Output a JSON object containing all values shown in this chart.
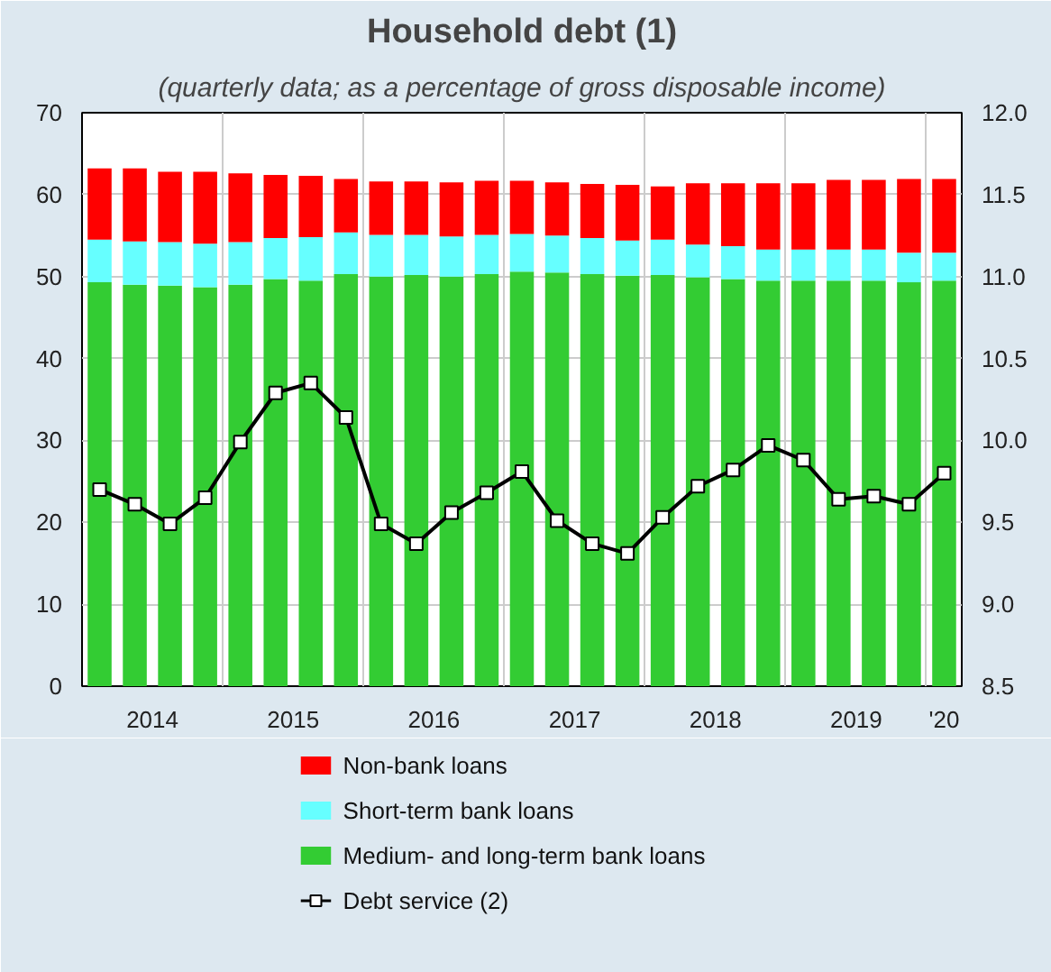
{
  "chart_data": {
    "type": "bar",
    "stacked": true,
    "title": "Household debt (1)",
    "subtitle": "(quarterly data; as a percentage of gross disposable income)",
    "x": [
      2014,
      2014.25,
      2014.5,
      2014.75,
      2015,
      2015.25,
      2015.5,
      2015.75,
      2016,
      2016.25,
      2016.5,
      2016.75,
      2017,
      2017.25,
      2017.5,
      2017.75,
      2018,
      2018.25,
      2018.5,
      2018.75,
      2019,
      2019.25,
      2019.5,
      2019.75,
      2020
    ],
    "xlim": [
      2013.875,
      2020.125
    ],
    "xticks": [
      {
        "value": 2014.375,
        "label": "2014"
      },
      {
        "value": 2015.375,
        "label": "2015"
      },
      {
        "value": 2016.375,
        "label": "2016"
      },
      {
        "value": 2017.375,
        "label": "2017"
      },
      {
        "value": 2018.375,
        "label": "2018"
      },
      {
        "value": 2019.375,
        "label": "2019"
      },
      {
        "value": 2020,
        "label": "'20"
      },
      {
        "value": 2014.875,
        "label": null
      },
      {
        "value": 2015.875,
        "label": null
      },
      {
        "value": 2016.875,
        "label": null
      },
      {
        "value": 2017.875,
        "label": null
      },
      {
        "value": 2018.875,
        "label": null
      },
      {
        "value": 2019.875,
        "label": null
      }
    ],
    "ylim": [
      0,
      70
    ],
    "yticks": [
      0,
      10,
      20,
      30,
      40,
      50,
      60,
      70
    ],
    "y2lim": [
      8.5,
      12.0
    ],
    "y2ticks": [
      {
        "value": 8.5,
        "label": "8.5"
      },
      {
        "value": 9,
        "label": "9.0"
      },
      {
        "value": 9.5,
        "label": "9.5"
      },
      {
        "value": 10,
        "label": "10.0"
      },
      {
        "value": 10.5,
        "label": "10.5"
      },
      {
        "value": 11,
        "label": "11.0"
      },
      {
        "value": 11.5,
        "label": "11.5"
      },
      {
        "value": 12,
        "label": "12.0"
      }
    ],
    "grid": true,
    "legend": "bottom",
    "series": [
      {
        "name": "Medium- and long-term bank loans",
        "color": "#33cc33",
        "values": [
          49.3,
          49.0,
          48.9,
          48.7,
          49.0,
          49.7,
          49.5,
          50.3,
          50.0,
          50.2,
          50.0,
          50.3,
          50.6,
          50.5,
          50.3,
          50.1,
          50.2,
          49.9,
          49.7,
          49.5,
          49.5,
          49.5,
          49.5,
          49.3,
          49.5
        ]
      },
      {
        "name": "Short-term bank loans",
        "color": "#66ffff",
        "values": [
          5.2,
          5.3,
          5.3,
          5.3,
          5.2,
          5.0,
          5.3,
          5.1,
          5.1,
          4.9,
          4.9,
          4.8,
          4.6,
          4.5,
          4.4,
          4.3,
          4.3,
          4.0,
          4.0,
          3.8,
          3.8,
          3.8,
          3.8,
          3.6,
          3.4
        ]
      },
      {
        "name": "Non-bank loans",
        "color": "#ff0000",
        "values": [
          8.7,
          8.9,
          8.6,
          8.8,
          8.4,
          7.7,
          7.5,
          6.5,
          6.5,
          6.5,
          6.6,
          6.6,
          6.5,
          6.5,
          6.6,
          6.8,
          6.5,
          7.5,
          7.7,
          8.1,
          8.1,
          8.5,
          8.5,
          9.0,
          9.0
        ]
      },
      {
        "name": "Debt service (2)",
        "type": "line",
        "axis": "y2",
        "color": "#000000",
        "marker": "square",
        "line_style": "solid",
        "values": [
          9.7,
          9.61,
          9.49,
          9.65,
          9.99,
          10.29,
          10.35,
          10.14,
          9.49,
          9.37,
          9.56,
          9.68,
          9.81,
          9.51,
          9.37,
          9.31,
          9.53,
          9.72,
          9.82,
          9.97,
          9.88,
          9.64,
          9.66,
          9.61,
          9.8
        ]
      }
    ]
  }
}
